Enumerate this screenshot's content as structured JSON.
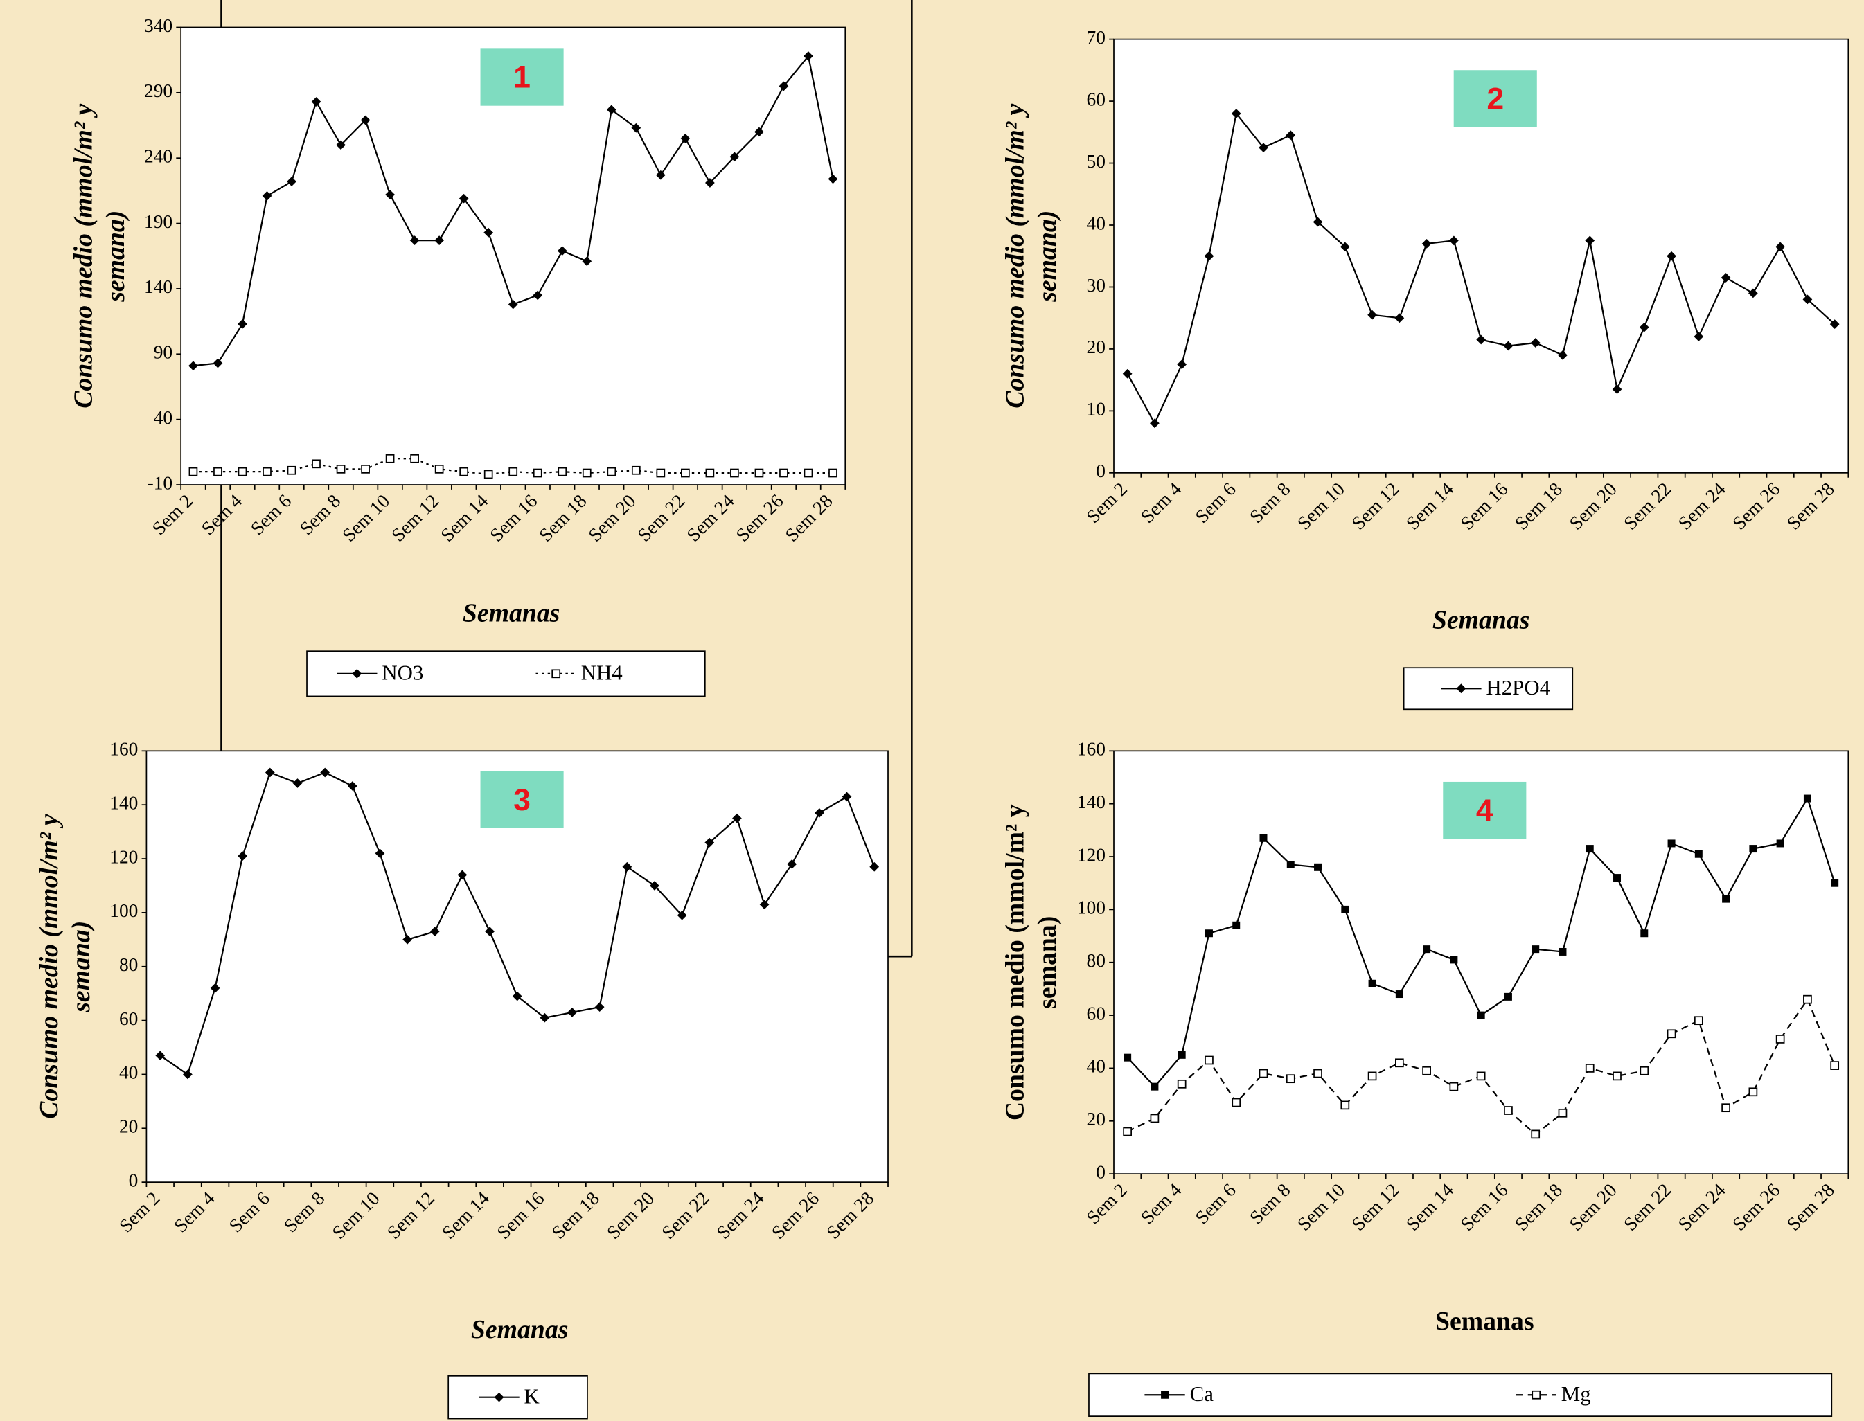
{
  "chart_data": [
    {
      "type": "line",
      "label": "1",
      "y_label": [
        "Consumo medio (mmol/m² y",
        "semana)"
      ],
      "x_label": "Semanas",
      "categories": [
        "Sem 2",
        null,
        "Sem 4",
        null,
        "Sem 6",
        null,
        "Sem 8",
        null,
        "Sem 10",
        null,
        "Sem 12",
        null,
        "Sem 14",
        null,
        "Sem 16",
        null,
        "Sem 18",
        null,
        "Sem 20",
        null,
        "Sem 22",
        null,
        "Sem 24",
        null,
        "Sem 26",
        null,
        "Sem 28"
      ],
      "ylim": [
        -10,
        340
      ],
      "yticks": [
        -10,
        40,
        90,
        140,
        190,
        240,
        290,
        340
      ],
      "series": [
        {
          "name": "NO3",
          "color": "#000000",
          "marker": "diamond",
          "line_style": "solid",
          "values": [
            81,
            83,
            113,
            211,
            222,
            283,
            250,
            269,
            212,
            177,
            177,
            209,
            183,
            128,
            135,
            169,
            161,
            277,
            263,
            227,
            255,
            221,
            241,
            260,
            295,
            318,
            224
          ]
        },
        {
          "name": "NH4",
          "color": "#000000",
          "marker": "hollow-square",
          "line_style": "dotted",
          "values": [
            0,
            0,
            0,
            0,
            1,
            6,
            2,
            2,
            10,
            10,
            2,
            0,
            -2,
            0,
            -1,
            0,
            -1,
            0,
            1,
            -1,
            -1,
            -1,
            -1,
            -1,
            -1,
            -1,
            -1
          ]
        }
      ]
    },
    {
      "type": "line",
      "label": "2",
      "y_label": [
        "Consumo medio (mmol/m² y",
        "semana)"
      ],
      "x_label": "Semanas",
      "categories": [
        "Sem 2",
        null,
        "Sem 4",
        null,
        "Sem 6",
        null,
        "Sem 8",
        null,
        "Sem 10",
        null,
        "Sem 12",
        null,
        "Sem 14",
        null,
        "Sem 16",
        null,
        "Sem 18",
        null,
        "Sem 20",
        null,
        "Sem 22",
        null,
        "Sem 24",
        null,
        "Sem 26",
        null,
        "Sem 28"
      ],
      "ylim": [
        0,
        70
      ],
      "yticks": [
        0,
        10,
        20,
        30,
        40,
        50,
        60,
        70
      ],
      "series": [
        {
          "name": "H2PO4",
          "color": "#000000",
          "marker": "diamond",
          "line_style": "solid",
          "values": [
            16,
            8,
            17.5,
            35,
            58,
            52.5,
            54.5,
            40.5,
            36.5,
            25.5,
            25,
            37,
            37.5,
            21.5,
            20.5,
            21,
            19,
            37.5,
            13.5,
            23.5,
            35,
            22,
            31.5,
            29,
            36.5,
            28,
            24
          ]
        }
      ]
    },
    {
      "type": "line",
      "label": "3",
      "y_label": [
        "Consumo medio (mmol/m² y",
        "semana)"
      ],
      "x_label": "Semanas",
      "categories": [
        "Sem 2",
        null,
        "Sem 4",
        null,
        "Sem 6",
        null,
        "Sem 8",
        null,
        "Sem 10",
        null,
        "Sem 12",
        null,
        "Sem 14",
        null,
        "Sem 16",
        null,
        "Sem 18",
        null,
        "Sem 20",
        null,
        "Sem 22",
        null,
        "Sem 24",
        null,
        "Sem 26",
        null,
        "Sem 28"
      ],
      "ylim": [
        0,
        160
      ],
      "yticks": [
        0,
        20,
        40,
        60,
        80,
        100,
        120,
        140,
        160
      ],
      "series": [
        {
          "name": "K",
          "color": "#000000",
          "marker": "diamond",
          "line_style": "solid",
          "values": [
            47,
            40,
            72,
            121,
            152,
            148,
            152,
            147,
            122,
            90,
            93,
            114,
            93,
            69,
            61,
            63,
            65,
            117,
            110,
            99,
            126,
            135,
            103,
            118,
            137,
            143,
            117
          ]
        }
      ]
    },
    {
      "type": "line",
      "label": "4",
      "y_label": [
        "Consumo medio (mmol/m² y",
        "semana)"
      ],
      "x_label": "Semanas",
      "categories": [
        "Sem 2",
        null,
        "Sem 4",
        null,
        "Sem 6",
        null,
        "Sem 8",
        null,
        "Sem 10",
        null,
        "Sem 12",
        null,
        "Sem 14",
        null,
        "Sem 16",
        null,
        "Sem 18",
        null,
        "Sem 20",
        null,
        "Sem 22",
        null,
        "Sem 24",
        null,
        "Sem 26",
        null,
        "Sem 28"
      ],
      "ylim": [
        0,
        160
      ],
      "yticks": [
        0,
        20,
        40,
        60,
        80,
        100,
        120,
        140,
        160
      ],
      "series": [
        {
          "name": "Ca",
          "color": "#000000",
          "marker": "square",
          "line_style": "solid",
          "values": [
            44,
            33,
            45,
            91,
            94,
            127,
            117,
            116,
            100,
            72,
            68,
            85,
            81,
            60,
            67,
            85,
            84,
            123,
            112,
            91,
            125,
            121,
            104,
            123,
            125,
            142,
            110
          ]
        },
        {
          "name": "Mg",
          "color": "#000000",
          "marker": "hollow-square",
          "line_style": "dashed",
          "values": [
            16,
            21,
            34,
            43,
            27,
            38,
            36,
            38,
            26,
            37,
            42,
            39,
            33,
            37,
            24,
            15,
            23,
            40,
            37,
            39,
            53,
            58,
            25,
            31,
            51,
            66,
            41
          ]
        }
      ]
    }
  ]
}
